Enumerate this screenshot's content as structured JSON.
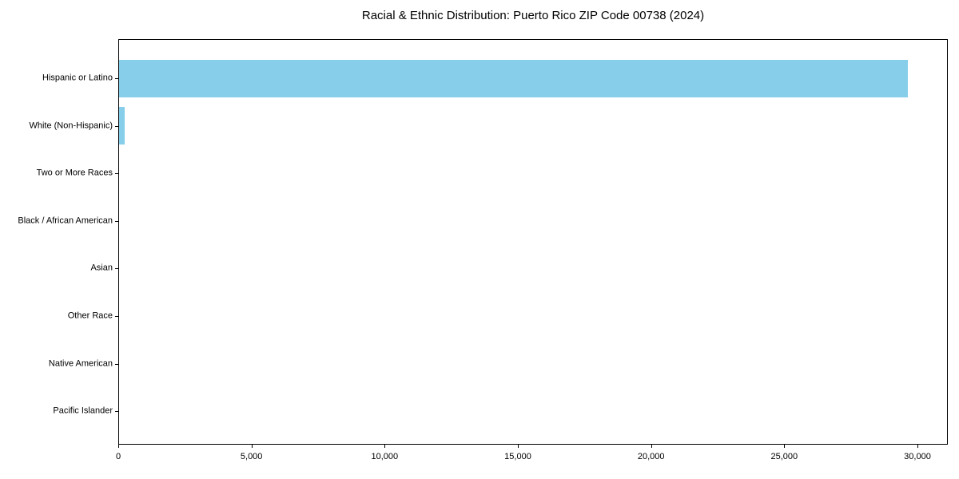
{
  "figure": {
    "title": "Racial & Ethnic Distribution: Puerto Rico ZIP Code 00738 (2024)"
  },
  "chart_data": {
    "type": "bar",
    "orientation": "horizontal",
    "title": "Racial & Ethnic Distribution: Puerto Rico ZIP Code 00738 (2024)",
    "categories": [
      "Hispanic or Latino",
      "White (Non-Hispanic)",
      "Two or More Races",
      "Black / African American",
      "Asian",
      "Other Race",
      "Native American",
      "Pacific Islander"
    ],
    "values": [
      29600,
      200,
      0,
      0,
      0,
      0,
      0,
      0
    ],
    "xlabel": "",
    "ylabel": "",
    "xlim": [
      0,
      31080
    ],
    "x_ticks": [
      0,
      5000,
      10000,
      15000,
      20000,
      25000,
      30000
    ],
    "x_tick_labels": [
      "0",
      "5,000",
      "10,000",
      "15,000",
      "20,000",
      "25,000",
      "30,000"
    ],
    "bar_color": "#87CEEB",
    "axis_color": "#000000",
    "background": "#FFFFFF",
    "grid": false,
    "legend": null
  }
}
